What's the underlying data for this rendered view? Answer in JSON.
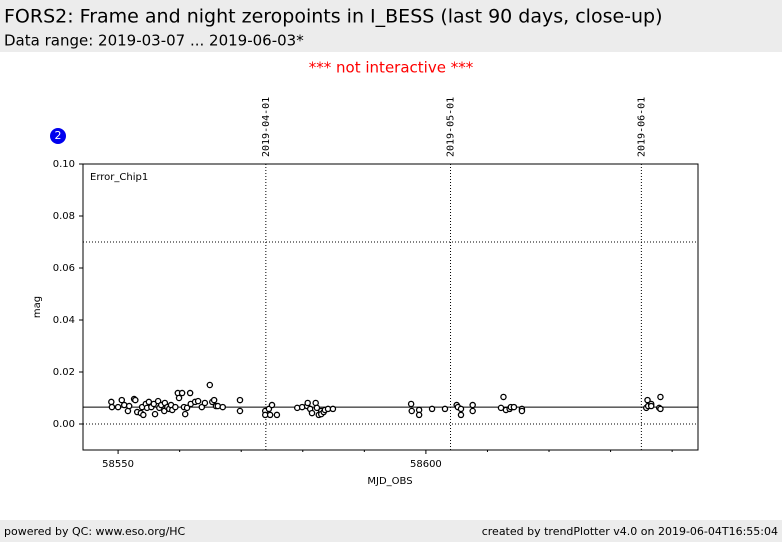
{
  "header": {
    "title": "FORS2: Frame and night zeropoints in I_BESS (last 90 days, close-up)",
    "subtitle": "Data range: 2019-03-07 ... 2019-06-03*"
  },
  "notice": "*** not interactive ***",
  "badge": "2",
  "footer": {
    "left": "powered by QC: www.eso.org/HC",
    "right": "created by trendPlotter v4.0 on 2019-06-04T16:55:04"
  },
  "chart_data": {
    "type": "scatter",
    "annotation": "Error_Chip1",
    "x_label": "MJD_OBS",
    "y_label": "mag",
    "xlim": [
      58544.3,
      58644.2
    ],
    "ylim": [
      -0.01,
      0.1
    ],
    "xticks": [
      58550,
      58600
    ],
    "xminorticks": [
      58560,
      58570,
      58580,
      58590,
      58610,
      58620,
      58630,
      58640
    ],
    "yticks": [
      {
        "value": 0,
        "label": "0.00"
      },
      {
        "value": 0.02,
        "label": "0.02"
      },
      {
        "value": 0.04,
        "label": "0.04"
      },
      {
        "value": 0.06,
        "label": "0.06"
      },
      {
        "value": 0.08,
        "label": "0.08"
      },
      {
        "value": 0.1,
        "label": "0.10"
      }
    ],
    "date_markers": [
      {
        "value": 58574,
        "label": "2019-04-01"
      },
      {
        "value": 58604,
        "label": "2019-05-01"
      },
      {
        "value": 58635,
        "label": "2019-06-01"
      }
    ],
    "reference_lines": [
      {
        "value": 0.0065,
        "style": "solid"
      },
      {
        "value": 0.07,
        "style": "dotted"
      },
      {
        "value": 0,
        "style": "dotted"
      }
    ],
    "series": [
      {
        "color": "#000000",
        "x": [
          58548.9,
          58549.0,
          58550.0,
          58550.6,
          58551.0,
          58551.6,
          58551.8,
          58552.6,
          58552.8,
          58553.1,
          58553.7,
          58553.9,
          58554.1,
          58554.5,
          58554.7,
          58555.0,
          58555.4,
          58555.8,
          58556.0,
          58556.5,
          58556.7,
          58557.0,
          58557.5,
          58557.6,
          58558.0,
          58558.3,
          58558.6,
          58558.8,
          58559.3,
          58559.7,
          58559.9,
          58560.4,
          58560.7,
          58560.9,
          58561.2,
          58561.7,
          58561.8,
          58562.5,
          58563.0,
          58563.6,
          58564.1,
          58564.9,
          58565.3,
          58565.6,
          58565.9,
          58566.2,
          58567.0,
          58569.8,
          58569.8,
          58573.9,
          58573.9,
          58574.5,
          58574.7,
          58575.0,
          58575.8,
          58579.1,
          58579.9,
          58580.7,
          58580.8,
          58581.2,
          58581.5,
          58582.1,
          58582.3,
          58582.6,
          58583.0,
          58583.0,
          58583.4,
          58583.6,
          58584.1,
          58584.9,
          58597.6,
          58597.7,
          58598.9,
          58598.9,
          58601.0,
          58603.1,
          58605.0,
          58605.2,
          58605.7,
          58605.7,
          58607.6,
          58607.6,
          58612.2,
          58612.6,
          58613.0,
          58613.6,
          58613.8,
          58614.3,
          58615.6,
          58615.6,
          58635.8,
          58636.0,
          58636.1,
          58636.6,
          58636.6,
          58637.9,
          58638.1,
          58638.1
        ],
        "values": [
          0.0085,
          0.0065,
          0.0065,
          0.0092,
          0.0073,
          0.005,
          0.0069,
          0.0096,
          0.0092,
          0.0046,
          0.0042,
          0.0065,
          0.0035,
          0.0077,
          0.0062,
          0.0085,
          0.0065,
          0.0077,
          0.0038,
          0.0088,
          0.0062,
          0.0073,
          0.005,
          0.0081,
          0.0065,
          0.0058,
          0.0073,
          0.0054,
          0.0065,
          0.0119,
          0.01,
          0.0119,
          0.0065,
          0.0038,
          0.0062,
          0.0119,
          0.0077,
          0.0085,
          0.0088,
          0.0065,
          0.0081,
          0.015,
          0.0085,
          0.0092,
          0.0069,
          0.0069,
          0.0065,
          0.0092,
          0.005,
          0.005,
          0.0035,
          0.0058,
          0.0035,
          0.0073,
          0.0035,
          0.0062,
          0.0065,
          0.0069,
          0.0081,
          0.0058,
          0.0042,
          0.0081,
          0.0062,
          0.0035,
          0.005,
          0.0038,
          0.0046,
          0.0054,
          0.0058,
          0.0058,
          0.0077,
          0.005,
          0.0054,
          0.0035,
          0.0058,
          0.0058,
          0.0073,
          0.0065,
          0.0035,
          0.0058,
          0.005,
          0.0073,
          0.0062,
          0.0104,
          0.0054,
          0.0058,
          0.0065,
          0.0065,
          0.0058,
          0.005,
          0.0062,
          0.0092,
          0.0069,
          0.0077,
          0.0069,
          0.0062,
          0.0104,
          0.0058
        ]
      }
    ]
  }
}
